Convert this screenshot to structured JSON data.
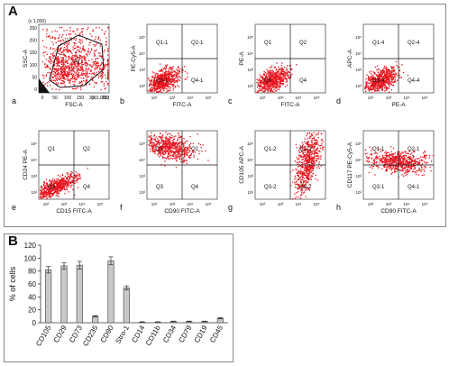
{
  "panel_a": {
    "label": "A",
    "plots": [
      {
        "letter": "a",
        "xlabel": "FSC-A",
        "ylabel": "SSC-A",
        "quadrants": [],
        "gate_label": "P1",
        "type": "fsc",
        "yticks": [
          "250",
          "200",
          "150",
          "100",
          "50",
          "0"
        ],
        "xticks": [
          "0",
          "50",
          "100",
          "150",
          "200",
          "250"
        ],
        "scale_x": "(x 1,000)",
        "scale_y": "(x 1,000)"
      },
      {
        "letter": "b",
        "xlabel": "FITC-A",
        "ylabel": "PE-Cy5-A",
        "quadrants": [
          "Q1-1",
          "Q2-1",
          "Q3-1",
          "Q4-1"
        ],
        "type": "low"
      },
      {
        "letter": "c",
        "xlabel": "FITC-A",
        "ylabel": "PE-A",
        "quadrants": [
          "Q1",
          "Q2",
          "Q3",
          "Q4"
        ],
        "type": "low"
      },
      {
        "letter": "d",
        "xlabel": "PE-A",
        "ylabel": "APC-A",
        "quadrants": [
          "Q1-4",
          "Q2-4",
          "Q3-4",
          "Q4-4"
        ],
        "type": "low"
      },
      {
        "letter": "e",
        "xlabel": "CD15 FITC-A",
        "ylabel": "CD24 PE-A",
        "quadrants": [
          "Q1",
          "Q2",
          "Q3",
          "Q4"
        ],
        "type": "low"
      },
      {
        "letter": "f",
        "xlabel": "CD90 FITC-A",
        "ylabel": "",
        "quadrants": [
          "Q1",
          "Q2",
          "Q3",
          "Q4"
        ],
        "type": "q1"
      },
      {
        "letter": "g",
        "xlabel": "",
        "ylabel": "CD105 APC-A",
        "quadrants": [
          "Q1-2",
          "Q2-2",
          "Q3-2",
          "Q4-2"
        ],
        "type": "q2"
      },
      {
        "letter": "h",
        "xlabel": "CD90 FITC-A",
        "ylabel": "CD117 PE-Cy5-A",
        "quadrants": [
          "Q1-1",
          "Q2-1",
          "Q3-1",
          "Q4-1"
        ],
        "type": "q12"
      }
    ],
    "log_ticks": [
      "10²",
      "10³",
      "10⁴",
      "10⁵"
    ]
  },
  "panel_b": {
    "label": "B"
  },
  "chart_data": {
    "type": "bar",
    "title": "",
    "xlabel": "",
    "ylabel": "% of cells",
    "ylim": [
      0,
      120
    ],
    "yticks": [
      0,
      20,
      40,
      60,
      80,
      100,
      120
    ],
    "categories": [
      "CD105",
      "CD29",
      "CD73",
      "CD235",
      "CD90",
      "Stro-1",
      "CD14",
      "CD11b",
      "CD34",
      "CD79",
      "CD19",
      "CD45"
    ],
    "values": [
      82,
      88,
      89,
      10,
      96,
      54,
      1,
      1,
      2,
      2,
      2,
      7
    ],
    "errors": [
      5,
      5,
      6,
      1,
      6,
      3,
      0.5,
      0.5,
      0.5,
      0.5,
      0.5,
      1
    ],
    "bar_color": "#c8c8c8",
    "dot_color": "#e8141e"
  }
}
